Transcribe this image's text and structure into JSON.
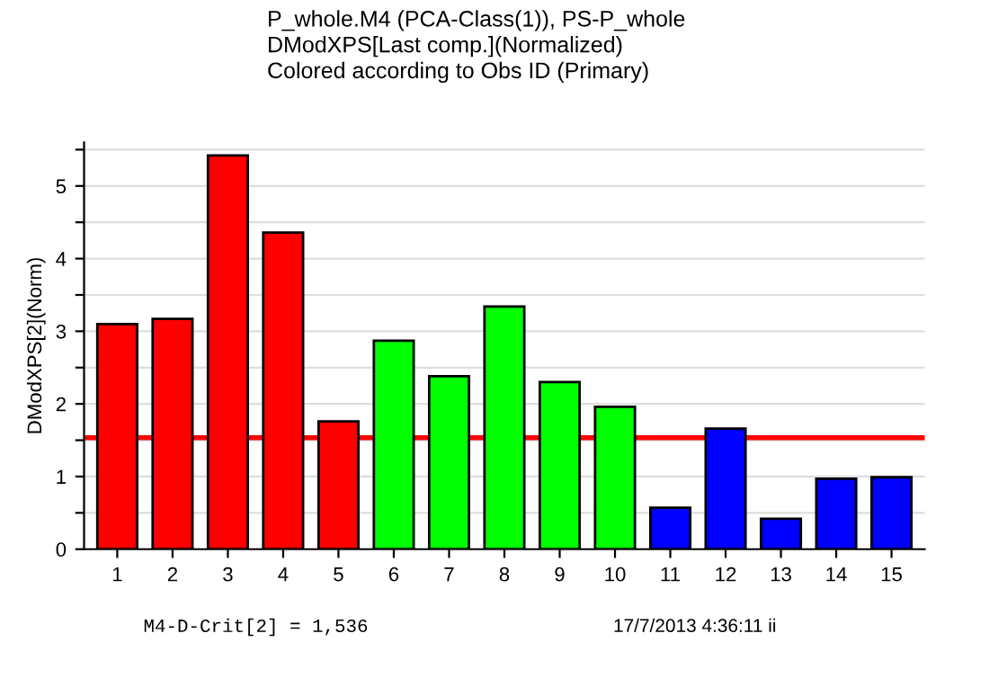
{
  "chart_data": {
    "type": "bar",
    "title": "P_whole.M4 (PCA-Class(1)), PS-P_whole\nDModXPS[Last comp.](Normalized)\nColored according to Obs ID (Primary)",
    "ylabel": "DModXPS[2](Norm)",
    "categories": [
      "1",
      "2",
      "3",
      "4",
      "5",
      "6",
      "7",
      "8",
      "9",
      "10",
      "11",
      "12",
      "13",
      "14",
      "15"
    ],
    "values": [
      3.1,
      3.17,
      5.42,
      4.36,
      1.76,
      2.87,
      2.38,
      3.34,
      2.3,
      1.96,
      0.57,
      1.66,
      0.42,
      0.97,
      0.99
    ],
    "colors": [
      "#ff0000",
      "#ff0000",
      "#ff0000",
      "#ff0000",
      "#ff0000",
      "#00ff00",
      "#00ff00",
      "#00ff00",
      "#00ff00",
      "#00ff00",
      "#0000ff",
      "#0000ff",
      "#0000ff",
      "#0000ff",
      "#0000ff"
    ],
    "ylim": [
      0,
      5.6
    ],
    "yticks": [
      0,
      {
        "value": 0.5,
        "label": null
      },
      1,
      {
        "value": 1.5,
        "label": null
      },
      2,
      {
        "value": 2.5,
        "label": null
      },
      3,
      {
        "value": 3.5,
        "label": null
      },
      4,
      {
        "value": 4.5,
        "label": null
      },
      5,
      {
        "value": 5.5,
        "label": null
      }
    ],
    "grid": "y",
    "ref_lines": [
      {
        "axis": "y",
        "value": 1.536,
        "color": "#ff0000"
      }
    ],
    "annotations": [
      "M4-D-Crit[2] = 1,536",
      "17/7/2013 4:36:11 ii"
    ]
  }
}
